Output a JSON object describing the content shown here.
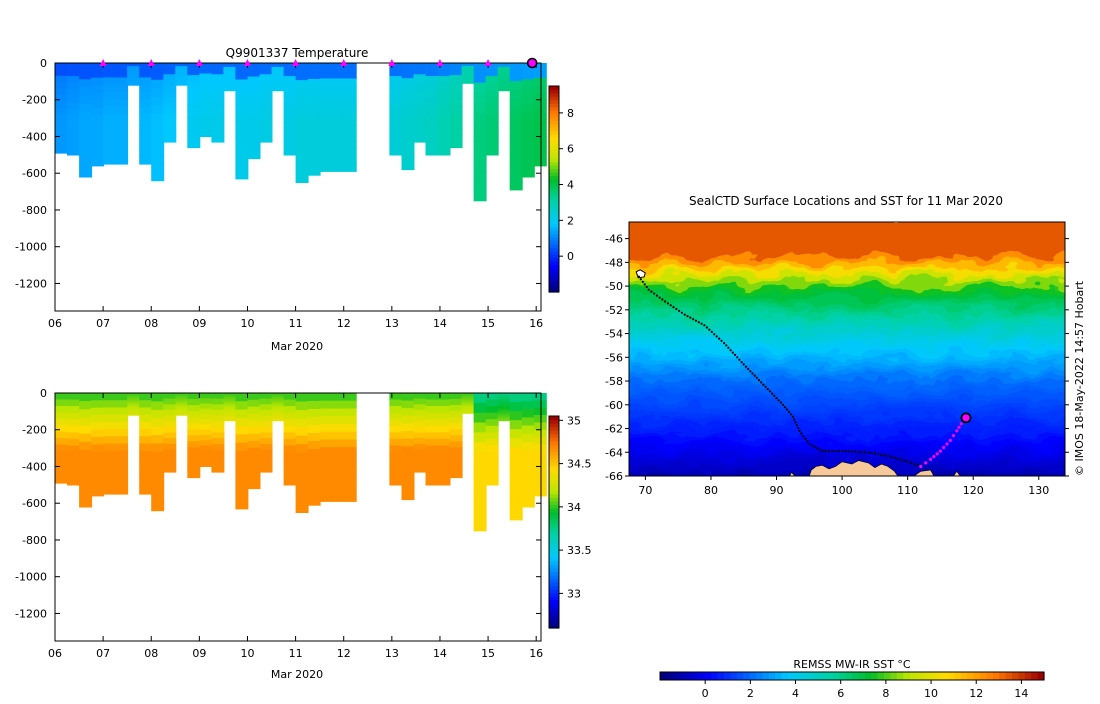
{
  "chart_data": [
    {
      "type": "heatmap",
      "id": "temperature",
      "title": "Q9901337  Temperature",
      "xlabel": "Mar 2020",
      "xlim": [
        6,
        16.1
      ],
      "x_ticks": [
        6,
        7,
        8,
        9,
        10,
        11,
        12,
        13,
        14,
        15,
        16
      ],
      "x_tick_labels": [
        "06",
        "07",
        "08",
        "09",
        "10",
        "11",
        "12",
        "13",
        "14",
        "15",
        "16"
      ],
      "ylim": [
        -1350,
        0
      ],
      "y_ticks": [
        0,
        -200,
        -400,
        -600,
        -800,
        -1000,
        -1200
      ],
      "colorbar": {
        "min": -2,
        "max": 9.5,
        "ticks": [
          0,
          2,
          4,
          6,
          8
        ]
      },
      "profile_marker_days": [
        7,
        8,
        9,
        10,
        11,
        12,
        13,
        14,
        15
      ],
      "current_marker_day": 16,
      "surface_value": 0.5,
      "deep_value": 2.0,
      "profiles": [
        {
          "x": 6.0,
          "depth": 490,
          "deep": 1.2
        },
        {
          "x": 6.25,
          "depth": 500,
          "deep": 1.3
        },
        {
          "x": 6.5,
          "depth": 620,
          "deep": 1.4
        },
        {
          "x": 6.75,
          "depth": 560,
          "deep": 1.4
        },
        {
          "x": 7.0,
          "depth": 550,
          "deep": 1.5
        },
        {
          "x": 7.25,
          "depth": 550,
          "deep": 1.5
        },
        {
          "x": 7.5,
          "depth": 120,
          "deep": 1.6
        },
        {
          "x": 7.75,
          "depth": 550,
          "deep": 1.6
        },
        {
          "x": 8.0,
          "depth": 640,
          "deep": 1.7
        },
        {
          "x": 8.25,
          "depth": 430,
          "deep": 1.8
        },
        {
          "x": 8.5,
          "depth": 120,
          "deep": 1.9
        },
        {
          "x": 8.75,
          "depth": 460,
          "deep": 2.0
        },
        {
          "x": 9.0,
          "depth": 400,
          "deep": 2.1
        },
        {
          "x": 9.25,
          "depth": 430,
          "deep": 2.1
        },
        {
          "x": 9.5,
          "depth": 150,
          "deep": 2.1
        },
        {
          "x": 9.75,
          "depth": 630,
          "deep": 2.1
        },
        {
          "x": 10.0,
          "depth": 520,
          "deep": 2.1
        },
        {
          "x": 10.25,
          "depth": 430,
          "deep": 2.2
        },
        {
          "x": 10.5,
          "depth": 150,
          "deep": 2.2
        },
        {
          "x": 10.75,
          "depth": 500,
          "deep": 2.2
        },
        {
          "x": 11.0,
          "depth": 650,
          "deep": 2.3
        },
        {
          "x": 11.25,
          "depth": 610,
          "deep": 2.3
        },
        {
          "x": 11.5,
          "depth": 590,
          "deep": 2.3
        },
        {
          "x": 11.75,
          "depth": 590,
          "deep": 2.3
        },
        {
          "x": 12.0,
          "depth": 590,
          "deep": 2.3
        },
        {
          "x": 12.95,
          "depth": 500,
          "deep": 2.4
        },
        {
          "x": 13.2,
          "depth": 580,
          "deep": 2.5
        },
        {
          "x": 13.45,
          "depth": 430,
          "deep": 2.6
        },
        {
          "x": 13.7,
          "depth": 500,
          "deep": 2.7
        },
        {
          "x": 13.95,
          "depth": 500,
          "deep": 2.9
        },
        {
          "x": 14.2,
          "depth": 460,
          "deep": 3.1
        },
        {
          "x": 14.45,
          "depth": 110,
          "deep": 3.3
        },
        {
          "x": 14.7,
          "depth": 750,
          "deep": 3.5
        },
        {
          "x": 14.95,
          "depth": 500,
          "deep": 3.6
        },
        {
          "x": 15.2,
          "depth": 150,
          "deep": 3.7
        },
        {
          "x": 15.45,
          "depth": 690,
          "deep": 3.8
        },
        {
          "x": 15.7,
          "depth": 620,
          "deep": 3.9
        },
        {
          "x": 15.95,
          "depth": 560,
          "deep": 4.0
        }
      ]
    },
    {
      "type": "heatmap",
      "id": "salinity",
      "title": "",
      "xlabel": "Mar 2020",
      "xlim": [
        6,
        16.1
      ],
      "x_ticks": [
        6,
        7,
        8,
        9,
        10,
        11,
        12,
        13,
        14,
        15,
        16
      ],
      "x_tick_labels": [
        "06",
        "07",
        "08",
        "09",
        "10",
        "11",
        "12",
        "13",
        "14",
        "15",
        "16"
      ],
      "ylim": [
        -1350,
        0
      ],
      "y_ticks": [
        0,
        -200,
        -400,
        -600,
        -800,
        -1000,
        -1200
      ],
      "colorbar": {
        "min": 32.6,
        "max": 35.05,
        "ticks": [
          33,
          33.5,
          34,
          34.5,
          35
        ],
        "tick_labels": [
          "33",
          "33.5",
          "34",
          "34.5",
          "35"
        ]
      },
      "surface_value": 34.0,
      "deep_value": 34.6
    },
    {
      "type": "heatmap",
      "id": "sst-map",
      "title": "SealCTD Surface Locations and SST for 11 Mar 2020",
      "xlim": [
        67.5,
        134
      ],
      "ylim": [
        -66,
        -44.6
      ],
      "x_ticks": [
        70,
        80,
        90,
        100,
        110,
        120,
        130
      ],
      "y_ticks": [
        -46,
        -48,
        -50,
        -52,
        -54,
        -56,
        -58,
        -60,
        -62,
        -64,
        -66
      ],
      "colorbar": {
        "label": "REMSS MW-IR SST °C",
        "min": -2,
        "max": 15,
        "ticks": [
          0,
          2,
          4,
          6,
          8,
          10,
          12,
          14
        ]
      },
      "track": [
        [
          69,
          -49.2
        ],
        [
          70.5,
          -50.3
        ],
        [
          73,
          -51.3
        ],
        [
          76,
          -52.4
        ],
        [
          79,
          -53.3
        ],
        [
          82,
          -54.8
        ],
        [
          85,
          -56.6
        ],
        [
          88,
          -58.3
        ],
        [
          91,
          -60.0
        ],
        [
          92.5,
          -61.0
        ],
        [
          93.5,
          -62.2
        ],
        [
          95,
          -63.3
        ],
        [
          97,
          -63.9
        ],
        [
          100,
          -63.9
        ],
        [
          104,
          -64.0
        ],
        [
          107,
          -64.3
        ],
        [
          110,
          -64.8
        ],
        [
          112,
          -65.2
        ]
      ],
      "recent_track": [
        [
          112,
          -65.2
        ],
        [
          113.5,
          -64.6
        ],
        [
          115,
          -63.9
        ],
        [
          116.5,
          -63.0
        ],
        [
          117.5,
          -62.2
        ],
        [
          118.5,
          -61.3
        ]
      ],
      "current_position": [
        118.9,
        -61.1
      ],
      "land": [
        [
          [
            95,
            -66
          ],
          [
            95.3,
            -65.5
          ],
          [
            96,
            -65.2
          ],
          [
            97,
            -65.1
          ],
          [
            98,
            -65.4
          ],
          [
            99,
            -65.2
          ],
          [
            100,
            -64.8
          ],
          [
            101.5,
            -65.0
          ],
          [
            102.5,
            -64.7
          ],
          [
            104,
            -64.9
          ],
          [
            105,
            -65.3
          ],
          [
            106,
            -65.0
          ],
          [
            107,
            -65.2
          ],
          [
            108,
            -65.6
          ],
          [
            108.5,
            -66
          ]
        ],
        [
          [
            92,
            -66
          ],
          [
            92.3,
            -65.7
          ],
          [
            92.8,
            -66
          ]
        ],
        [
          [
            111,
            -66
          ],
          [
            112,
            -65.6
          ],
          [
            113.5,
            -65.5
          ],
          [
            114,
            -66
          ]
        ],
        [
          [
            117,
            -66
          ],
          [
            117.5,
            -65.6
          ],
          [
            118,
            -66
          ]
        ]
      ]
    }
  ],
  "credit": "© IMOS 18-May-2022 14:57 Hobart"
}
